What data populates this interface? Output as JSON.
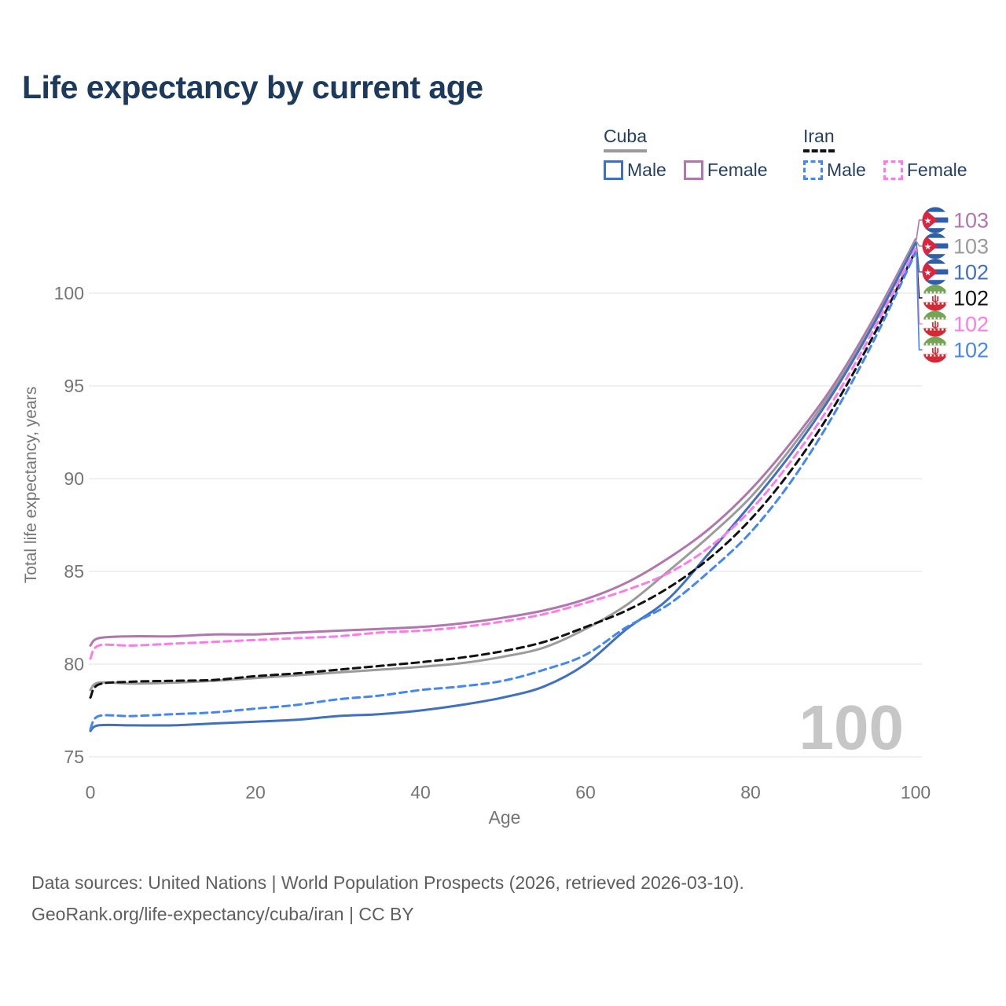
{
  "title": "Life expectancy by current age",
  "watermark": "100",
  "legend": {
    "groups": [
      {
        "label": "Cuba",
        "line_style": "solid",
        "underline_color": "#9a9a9a",
        "items": [
          {
            "label": "Male",
            "color": "#4170bf"
          },
          {
            "label": "Female",
            "color": "#b077ad"
          }
        ]
      },
      {
        "label": "Iran",
        "line_style": "dashed",
        "underline_color": "#111111",
        "items": [
          {
            "label": "Male",
            "color": "#4487f2"
          },
          {
            "label": "Female",
            "color": "#ff7ce7"
          }
        ]
      }
    ]
  },
  "chart_data": {
    "type": "line",
    "title": "Life expectancy by current age",
    "xlabel": "Age",
    "ylabel": "Total life expectancy, years",
    "xlim": [
      0,
      100
    ],
    "ylim": [
      75,
      103.5
    ],
    "x_ticks": [
      0,
      20,
      40,
      60,
      80,
      100
    ],
    "y_ticks": [
      75,
      80,
      85,
      90,
      95,
      100
    ],
    "grid": "horizontal",
    "legend_position": "top-right",
    "x": [
      0,
      1,
      5,
      10,
      15,
      20,
      25,
      30,
      35,
      40,
      45,
      50,
      55,
      60,
      65,
      70,
      75,
      80,
      85,
      90,
      95,
      100
    ],
    "series": [
      {
        "name": "Cuba Female",
        "country": "cuba",
        "sex": "Female",
        "color": "#b077ad",
        "style": "solid",
        "end_label": "103",
        "flag": "cuba-flag-icon",
        "values": [
          81.0,
          81.4,
          81.5,
          81.5,
          81.6,
          81.6,
          81.7,
          81.8,
          81.9,
          82.0,
          82.2,
          82.5,
          82.9,
          83.5,
          84.4,
          85.7,
          87.3,
          89.4,
          92.0,
          95.0,
          98.7,
          102.9
        ]
      },
      {
        "name": "Cuba Both Sexes",
        "country": "cuba",
        "sex": "Both",
        "color": "#9b9b9b",
        "style": "solid",
        "end_label": "103",
        "flag": "cuba-flag-icon",
        "values": [
          78.6,
          79.0,
          78.95,
          79.0,
          79.1,
          79.25,
          79.4,
          79.55,
          79.7,
          79.85,
          80.05,
          80.4,
          80.9,
          81.9,
          83.2,
          85.0,
          86.9,
          89.0,
          91.7,
          94.8,
          98.5,
          102.8
        ]
      },
      {
        "name": "Cuba Male",
        "country": "cuba",
        "sex": "Male",
        "color": "#4170bf",
        "style": "solid",
        "end_label": "102",
        "flag": "cuba-flag-icon",
        "values": [
          76.4,
          76.7,
          76.7,
          76.7,
          76.8,
          76.9,
          77.0,
          77.2,
          77.3,
          77.5,
          77.8,
          78.2,
          78.8,
          80.0,
          81.9,
          83.5,
          86.0,
          88.6,
          91.4,
          94.6,
          98.4,
          102.7
        ]
      },
      {
        "name": "Iran Both Sexes",
        "country": "iran",
        "sex": "Both",
        "color": "#111111",
        "style": "dashed",
        "end_label": "102",
        "flag": "iran-flag-icon",
        "values": [
          78.2,
          78.9,
          79.05,
          79.1,
          79.15,
          79.35,
          79.5,
          79.7,
          79.9,
          80.1,
          80.35,
          80.7,
          81.2,
          82.0,
          82.9,
          84.1,
          85.7,
          87.8,
          90.5,
          93.8,
          97.8,
          102.3
        ]
      },
      {
        "name": "Iran Female",
        "country": "iran",
        "sex": "Female",
        "color": "#ff7ce7",
        "style": "dashed",
        "end_label": "102",
        "flag": "iran-flag-icon",
        "values": [
          80.3,
          81.0,
          81.0,
          81.1,
          81.2,
          81.3,
          81.4,
          81.5,
          81.7,
          81.8,
          82.0,
          82.3,
          82.7,
          83.3,
          84.0,
          84.9,
          86.3,
          88.3,
          91.0,
          94.2,
          98.1,
          102.4
        ]
      },
      {
        "name": "Iran Male",
        "country": "iran",
        "sex": "Male",
        "color": "#4487f2",
        "style": "dashed",
        "end_label": "102",
        "flag": "iran-flag-icon",
        "values": [
          76.5,
          77.2,
          77.2,
          77.3,
          77.4,
          77.6,
          77.8,
          78.1,
          78.3,
          78.6,
          78.8,
          79.1,
          79.7,
          80.5,
          82.0,
          83.2,
          85.0,
          87.1,
          89.9,
          93.4,
          97.5,
          102.2
        ]
      }
    ]
  },
  "footer": {
    "line1": "Data sources: United Nations | World Population Prospects (2026, retrieved 2026-03-10).",
    "line2": "GeoRank.org/life-expectancy/cuba/iran | CC BY"
  }
}
